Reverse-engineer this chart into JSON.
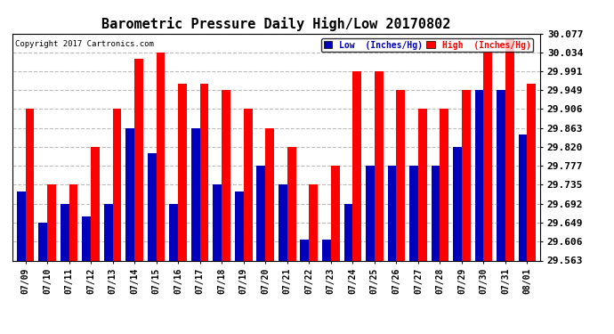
{
  "title": "Barometric Pressure Daily High/Low 20170802",
  "copyright": "Copyright 2017 Cartronics.com",
  "legend_low": "Low  (Inches/Hg)",
  "legend_high": "High  (Inches/Hg)",
  "dates": [
    "07/09",
    "07/10",
    "07/11",
    "07/12",
    "07/13",
    "07/14",
    "07/15",
    "07/16",
    "07/17",
    "07/18",
    "07/19",
    "07/20",
    "07/21",
    "07/22",
    "07/23",
    "07/24",
    "07/25",
    "07/26",
    "07/27",
    "07/28",
    "07/29",
    "07/30",
    "07/31",
    "08/01"
  ],
  "high": [
    29.906,
    29.735,
    29.735,
    29.82,
    29.906,
    30.02,
    30.034,
    29.963,
    29.963,
    29.949,
    29.906,
    29.863,
    29.82,
    29.735,
    29.778,
    29.991,
    29.991,
    29.949,
    29.906,
    29.906,
    29.949,
    30.034,
    30.063,
    29.963
  ],
  "low": [
    29.72,
    29.649,
    29.692,
    29.663,
    29.692,
    29.863,
    29.806,
    29.692,
    29.863,
    29.735,
    29.72,
    29.777,
    29.735,
    29.61,
    29.61,
    29.692,
    29.777,
    29.777,
    29.777,
    29.777,
    29.82,
    29.949,
    29.949,
    29.848
  ],
  "ylim_min": 29.563,
  "ylim_max": 30.077,
  "yticks": [
    29.563,
    29.606,
    29.649,
    29.692,
    29.735,
    29.777,
    29.82,
    29.863,
    29.906,
    29.949,
    29.991,
    30.034,
    30.077
  ],
  "color_high": "#ff0000",
  "color_low": "#0000bb",
  "bg_color": "#ffffff",
  "plot_bg": "#ffffff",
  "grid_color": "#bbbbbb",
  "title_fontsize": 11,
  "bar_width": 0.4
}
